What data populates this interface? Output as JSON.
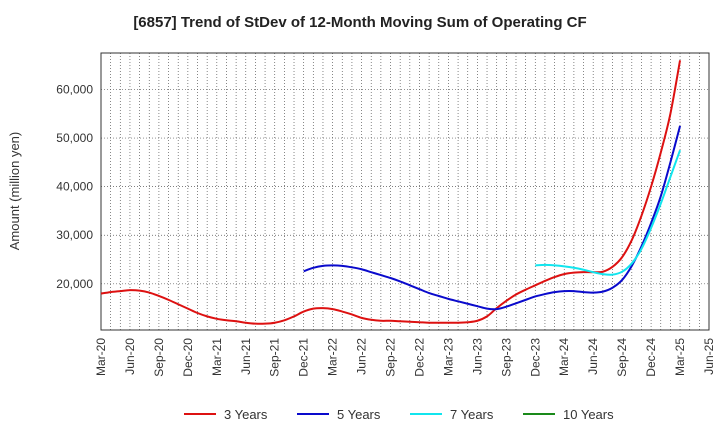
{
  "chart_data": {
    "type": "line",
    "title": "[6857]  Trend of StDev of 12-Month Moving Sum of Operating CF",
    "xlabel": "",
    "ylabel": "Amount (million yen)",
    "ylim": [
      10500,
      67500
    ],
    "yticks": [
      20000,
      30000,
      40000,
      50000,
      60000
    ],
    "ytick_labels": [
      "20,000",
      "30,000",
      "40,000",
      "50,000",
      "60,000"
    ],
    "x_range": [
      "2020-03",
      "2025-06"
    ],
    "x_tick_labels": [
      "Mar-20",
      "Jun-20",
      "Sep-20",
      "Dec-20",
      "Mar-21",
      "Jun-21",
      "Sep-21",
      "Dec-21",
      "Mar-22",
      "Jun-22",
      "Sep-22",
      "Dec-22",
      "Mar-23",
      "Jun-23",
      "Sep-23",
      "Dec-23",
      "Mar-24",
      "Jun-24",
      "Sep-24",
      "Dec-24",
      "Mar-25",
      "Jun-25"
    ],
    "grid": true,
    "legend_position": "bottom",
    "series": [
      {
        "name": "3 Years",
        "color": "#dd1111",
        "points": [
          [
            "2020-03",
            18000
          ],
          [
            "2020-04",
            18300
          ],
          [
            "2020-05",
            18500
          ],
          [
            "2020-06",
            18700
          ],
          [
            "2020-07",
            18600
          ],
          [
            "2020-08",
            18200
          ],
          [
            "2020-09",
            17500
          ],
          [
            "2020-10",
            16700
          ],
          [
            "2020-11",
            15800
          ],
          [
            "2020-12",
            14900
          ],
          [
            "2021-01",
            14000
          ],
          [
            "2021-02",
            13300
          ],
          [
            "2021-03",
            12800
          ],
          [
            "2021-04",
            12500
          ],
          [
            "2021-05",
            12300
          ],
          [
            "2021-06",
            12000
          ],
          [
            "2021-07",
            11800
          ],
          [
            "2021-08",
            11800
          ],
          [
            "2021-09",
            12000
          ],
          [
            "2021-10",
            12500
          ],
          [
            "2021-11",
            13300
          ],
          [
            "2021-12",
            14300
          ],
          [
            "2022-01",
            14900
          ],
          [
            "2022-02",
            15000
          ],
          [
            "2022-03",
            14800
          ],
          [
            "2022-04",
            14300
          ],
          [
            "2022-05",
            13700
          ],
          [
            "2022-06",
            13000
          ],
          [
            "2022-07",
            12600
          ],
          [
            "2022-08",
            12400
          ],
          [
            "2022-09",
            12400
          ],
          [
            "2022-10",
            12300
          ],
          [
            "2022-11",
            12200
          ],
          [
            "2022-12",
            12100
          ],
          [
            "2023-01",
            12000
          ],
          [
            "2023-02",
            12000
          ],
          [
            "2023-03",
            12000
          ],
          [
            "2023-04",
            12000
          ],
          [
            "2023-05",
            12100
          ],
          [
            "2023-06",
            12400
          ],
          [
            "2023-07",
            13300
          ],
          [
            "2023-08",
            15000
          ],
          [
            "2023-09",
            16500
          ],
          [
            "2023-10",
            17800
          ],
          [
            "2023-11",
            18800
          ],
          [
            "2023-12",
            19700
          ],
          [
            "2024-01",
            20600
          ],
          [
            "2024-02",
            21400
          ],
          [
            "2024-03",
            22000
          ],
          [
            "2024-04",
            22300
          ],
          [
            "2024-05",
            22400
          ],
          [
            "2024-06",
            22400
          ],
          [
            "2024-07",
            22500
          ],
          [
            "2024-08",
            23500
          ],
          [
            "2024-09",
            25500
          ],
          [
            "2024-10",
            29000
          ],
          [
            "2024-11",
            34000
          ],
          [
            "2024-12",
            40000
          ],
          [
            "2025-01",
            47000
          ],
          [
            "2025-02",
            55000
          ],
          [
            "2025-03",
            66000
          ]
        ]
      },
      {
        "name": "5 Years",
        "color": "#0a0acc",
        "points": [
          [
            "2021-12",
            22600
          ],
          [
            "2022-01",
            23300
          ],
          [
            "2022-02",
            23700
          ],
          [
            "2022-03",
            23800
          ],
          [
            "2022-04",
            23700
          ],
          [
            "2022-05",
            23400
          ],
          [
            "2022-06",
            23000
          ],
          [
            "2022-07",
            22400
          ],
          [
            "2022-08",
            21800
          ],
          [
            "2022-09",
            21200
          ],
          [
            "2022-10",
            20500
          ],
          [
            "2022-11",
            19700
          ],
          [
            "2022-12",
            18900
          ],
          [
            "2023-01",
            18100
          ],
          [
            "2023-02",
            17500
          ],
          [
            "2023-03",
            16900
          ],
          [
            "2023-04",
            16400
          ],
          [
            "2023-05",
            15900
          ],
          [
            "2023-06",
            15400
          ],
          [
            "2023-07",
            14900
          ],
          [
            "2023-08",
            14800
          ],
          [
            "2023-09",
            15300
          ],
          [
            "2023-10",
            16000
          ],
          [
            "2023-11",
            16700
          ],
          [
            "2023-12",
            17400
          ],
          [
            "2024-01",
            17900
          ],
          [
            "2024-02",
            18300
          ],
          [
            "2024-03",
            18500
          ],
          [
            "2024-04",
            18500
          ],
          [
            "2024-05",
            18300
          ],
          [
            "2024-06",
            18200
          ],
          [
            "2024-07",
            18400
          ],
          [
            "2024-08",
            19200
          ],
          [
            "2024-09",
            20800
          ],
          [
            "2024-10",
            23700
          ],
          [
            "2024-11",
            27700
          ],
          [
            "2024-12",
            32500
          ],
          [
            "2025-01",
            38000
          ],
          [
            "2025-02",
            45000
          ],
          [
            "2025-03",
            52500
          ]
        ]
      },
      {
        "name": "7 Years",
        "color": "#11e5ee",
        "points": [
          [
            "2023-12",
            23800
          ],
          [
            "2024-01",
            23900
          ],
          [
            "2024-02",
            23800
          ],
          [
            "2024-03",
            23600
          ],
          [
            "2024-04",
            23300
          ],
          [
            "2024-05",
            22900
          ],
          [
            "2024-06",
            22400
          ],
          [
            "2024-07",
            22000
          ],
          [
            "2024-08",
            21900
          ],
          [
            "2024-09",
            22500
          ],
          [
            "2024-10",
            24200
          ],
          [
            "2024-11",
            27200
          ],
          [
            "2024-12",
            31500
          ],
          [
            "2025-01",
            36500
          ],
          [
            "2025-02",
            42000
          ],
          [
            "2025-03",
            47500
          ]
        ]
      },
      {
        "name": "10 Years",
        "color": "#1a8a1a",
        "points": []
      }
    ]
  }
}
